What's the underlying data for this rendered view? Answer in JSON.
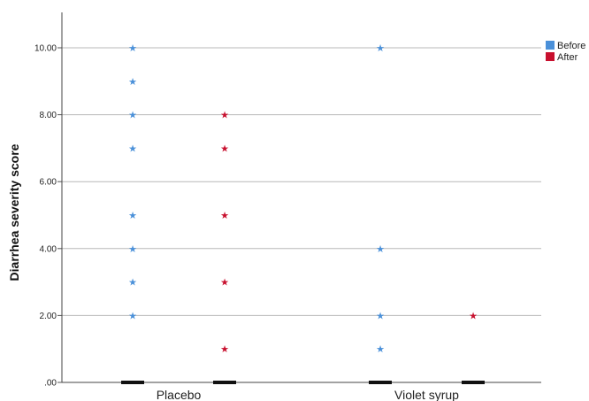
{
  "chart_data": {
    "type": "scatter",
    "title": "",
    "xlabel": "",
    "ylabel": "Diarrhea severity score",
    "ylim": [
      0,
      10
    ],
    "yticks": [
      ".00",
      "2.00",
      "4.00",
      "6.00",
      "8.00",
      "10.00"
    ],
    "grid": true,
    "legend_position": "top-right",
    "categories": [
      "Placebo",
      "Violet syrup"
    ],
    "marker": "★",
    "series": [
      {
        "name": "Before",
        "color": "#4a90d9",
        "points": {
          "Placebo": [
            10,
            9,
            8,
            7,
            5,
            4,
            3,
            2
          ],
          "Violet syrup": [
            10,
            4,
            2,
            1
          ]
        }
      },
      {
        "name": "After",
        "color": "#c8102e",
        "points": {
          "Placebo": [
            8,
            7,
            5,
            3,
            1
          ],
          "Violet syrup": [
            2
          ]
        }
      }
    ]
  }
}
